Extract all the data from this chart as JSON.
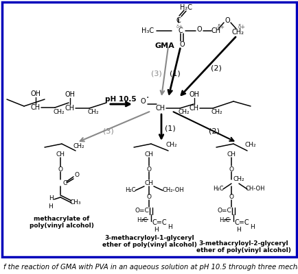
{
  "caption": "f the reaction of GMA with PVA in an aqueous solution at pH 10.5 through three mechanism r",
  "background_color": "#ffffff",
  "border_color": "#0000bb",
  "fig_width": 4.35,
  "fig_height": 4.0,
  "dpi": 100,
  "caption_fontsize": 7.2,
  "inner_bg": "#e8e8f0",
  "gma_label": "GMA",
  "ph_label": "pH 10.5",
  "label1": "(1)",
  "label2": "(2)",
  "label3": "(3)",
  "prod1_name1": "methacrylate of",
  "prod1_name2": "poly(vinyl alcohol)",
  "prod2_name1": "3-methacryloyl-1-glyceryl",
  "prod2_name2": "ether of poly(vinyl alcohol)",
  "prod3_name1": "3-methacryloyl-2-glyceryl",
  "prod3_name2": "ether of poly(vinyl alcohol)"
}
